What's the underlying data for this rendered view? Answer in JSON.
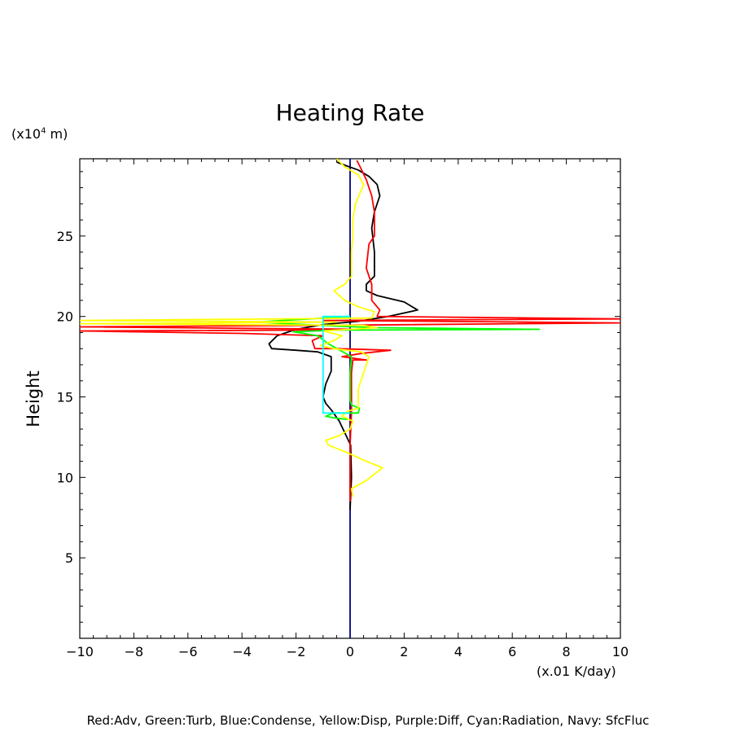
{
  "chart_data": {
    "type": "line",
    "title": "Heating Rate",
    "ylabel": "Height",
    "yunit_prefix": "(x10",
    "yunit_exp": "4",
    "yunit_suffix": " m)",
    "xunit": "(x.01 K/day)",
    "xlim": [
      -10,
      10
    ],
    "ylim": [
      0,
      29.8
    ],
    "xticks": [
      -10,
      -8,
      -6,
      -4,
      -2,
      0,
      2,
      4,
      6,
      8,
      10
    ],
    "xtick_labels": [
      "−10",
      "−8",
      "−6",
      "−4",
      "−2",
      "0",
      "2",
      "4",
      "6",
      "8",
      "10"
    ],
    "yticks": [
      5,
      10,
      15,
      20,
      25
    ],
    "ytick_labels": [
      "5",
      "10",
      "15",
      "20",
      "25"
    ],
    "legend": "Red:Adv, Green:Turb, Blue:Condense, Yellow:Disp, Purple:Diff, Cyan:Radiation, Navy: SfcFluc",
    "series": [
      {
        "name": "Navy",
        "color": "#000080",
        "points": [
          [
            0,
            0
          ],
          [
            0,
            29.8
          ]
        ]
      },
      {
        "name": "Black",
        "color": "#000000",
        "points": [
          [
            0,
            8.0
          ],
          [
            0.05,
            10
          ],
          [
            0.02,
            12
          ],
          [
            -0.4,
            13.5
          ],
          [
            -0.7,
            14.2
          ],
          [
            -0.9,
            14.6
          ],
          [
            -1.0,
            15.0
          ],
          [
            -0.9,
            15.8
          ],
          [
            -0.7,
            16.6
          ],
          [
            -0.7,
            17.5
          ],
          [
            -1.2,
            17.8
          ],
          [
            -2.0,
            17.9
          ],
          [
            -2.9,
            18.0
          ],
          [
            -3.0,
            18.3
          ],
          [
            -2.7,
            18.8
          ],
          [
            -2.0,
            19.2
          ],
          [
            -1.0,
            19.5
          ],
          [
            0.3,
            19.7
          ],
          [
            1.4,
            20.0
          ],
          [
            2.5,
            20.4
          ],
          [
            2.0,
            20.9
          ],
          [
            1.0,
            21.3
          ],
          [
            0.6,
            21.6
          ],
          [
            0.6,
            22.0
          ],
          [
            0.9,
            22.5
          ],
          [
            0.9,
            24.0
          ],
          [
            0.8,
            25.5
          ],
          [
            0.9,
            26.5
          ],
          [
            1.1,
            27.5
          ],
          [
            1.0,
            28.2
          ],
          [
            0.7,
            28.7
          ],
          [
            0.3,
            29.1
          ],
          [
            -0.2,
            29.4
          ],
          [
            -0.5,
            29.6
          ]
        ]
      },
      {
        "name": "Red:Adv",
        "color": "#ff0000",
        "points": [
          [
            0,
            8.5
          ],
          [
            0,
            12
          ],
          [
            0.05,
            14
          ],
          [
            0.05,
            16.5
          ],
          [
            0.1,
            17.3
          ],
          [
            0.6,
            17.3
          ],
          [
            -0.3,
            17.5
          ],
          [
            0.4,
            17.7
          ],
          [
            1.5,
            17.9
          ],
          [
            -0.5,
            18.0
          ],
          [
            -1.3,
            18.0
          ],
          [
            -1.4,
            18.5
          ],
          [
            -1.0,
            18.8
          ],
          [
            -4.0,
            18.95
          ],
          [
            -10,
            19.1
          ],
          [
            -2.0,
            19.15
          ],
          [
            0.5,
            19.2
          ],
          [
            -10,
            19.35
          ],
          [
            -1.0,
            19.45
          ],
          [
            10,
            19.6
          ],
          [
            3.0,
            19.7
          ],
          [
            -1.0,
            19.75
          ],
          [
            10,
            19.85
          ],
          [
            1.0,
            20.0
          ],
          [
            1.1,
            20.4
          ],
          [
            0.8,
            21.0
          ],
          [
            0.8,
            22.0
          ],
          [
            0.6,
            23.0
          ],
          [
            0.7,
            24.5
          ],
          [
            0.9,
            25.0
          ],
          [
            0.9,
            26.5
          ],
          [
            0.8,
            27.5
          ],
          [
            0.6,
            28.5
          ],
          [
            0.4,
            29.2
          ],
          [
            0.25,
            29.7
          ]
        ]
      },
      {
        "name": "Green:Turb",
        "color": "#00ff00",
        "points": [
          [
            -0.1,
            13.6
          ],
          [
            -0.6,
            13.7
          ],
          [
            -0.9,
            13.8
          ],
          [
            -0.6,
            14.0
          ],
          [
            0.3,
            14.0
          ],
          [
            0.35,
            14.3
          ],
          [
            0.05,
            14.5
          ],
          [
            0,
            14.8
          ],
          [
            0,
            16.5
          ],
          [
            0.05,
            17.5
          ],
          [
            -0.8,
            18.3
          ],
          [
            -1.2,
            18.8
          ],
          [
            -2.1,
            19.05
          ],
          [
            -0.5,
            19.15
          ],
          [
            7.0,
            19.2
          ],
          [
            1.0,
            19.3
          ],
          [
            -0.5,
            19.4
          ],
          [
            -3.5,
            19.65
          ],
          [
            -1.0,
            19.9
          ],
          [
            0,
            20.0
          ]
        ]
      },
      {
        "name": "Yellow:Disp",
        "color": "#ffff00",
        "points": [
          [
            0.1,
            8.8
          ],
          [
            0.05,
            9.3
          ],
          [
            0.6,
            9.8
          ],
          [
            1.2,
            10.6
          ],
          [
            0.6,
            11.0
          ],
          [
            -0.2,
            11.6
          ],
          [
            -0.8,
            12.0
          ],
          [
            -0.9,
            12.3
          ],
          [
            -0.4,
            12.6
          ],
          [
            0,
            13.0
          ],
          [
            0.1,
            13.5
          ],
          [
            -0.3,
            13.8
          ],
          [
            -0.1,
            14.1
          ],
          [
            0.3,
            14.3
          ],
          [
            0.3,
            15.5
          ],
          [
            0.5,
            16.5
          ],
          [
            0.6,
            17.0
          ],
          [
            0.7,
            17.5
          ],
          [
            0.4,
            17.8
          ],
          [
            -0.6,
            18.0
          ],
          [
            -1.1,
            18.2
          ],
          [
            -0.6,
            18.5
          ],
          [
            -0.3,
            18.8
          ],
          [
            -1.0,
            19.1
          ],
          [
            1.0,
            19.3
          ],
          [
            0.5,
            19.45
          ],
          [
            -10,
            19.55
          ],
          [
            -0.5,
            19.65
          ],
          [
            -10,
            19.75
          ],
          [
            -2.5,
            19.85
          ],
          [
            0.8,
            19.9
          ],
          [
            0.9,
            20.3
          ],
          [
            0.3,
            20.6
          ],
          [
            -0.2,
            21.0
          ],
          [
            -0.6,
            21.6
          ],
          [
            -0.2,
            22.0
          ],
          [
            0.05,
            22.5
          ],
          [
            0.05,
            24.0
          ],
          [
            0.1,
            25.0
          ],
          [
            0.1,
            26.0
          ],
          [
            0.2,
            27.0
          ],
          [
            0.5,
            28.2
          ],
          [
            0.3,
            28.8
          ],
          [
            -0.2,
            29.3
          ],
          [
            -0.5,
            29.8
          ]
        ]
      },
      {
        "name": "Cyan:Radiation",
        "color": "#00ffff",
        "points": [
          [
            0,
            14.0
          ],
          [
            -1.0,
            14.0
          ],
          [
            -1.0,
            20.0
          ],
          [
            0,
            20.0
          ]
        ]
      }
    ]
  }
}
